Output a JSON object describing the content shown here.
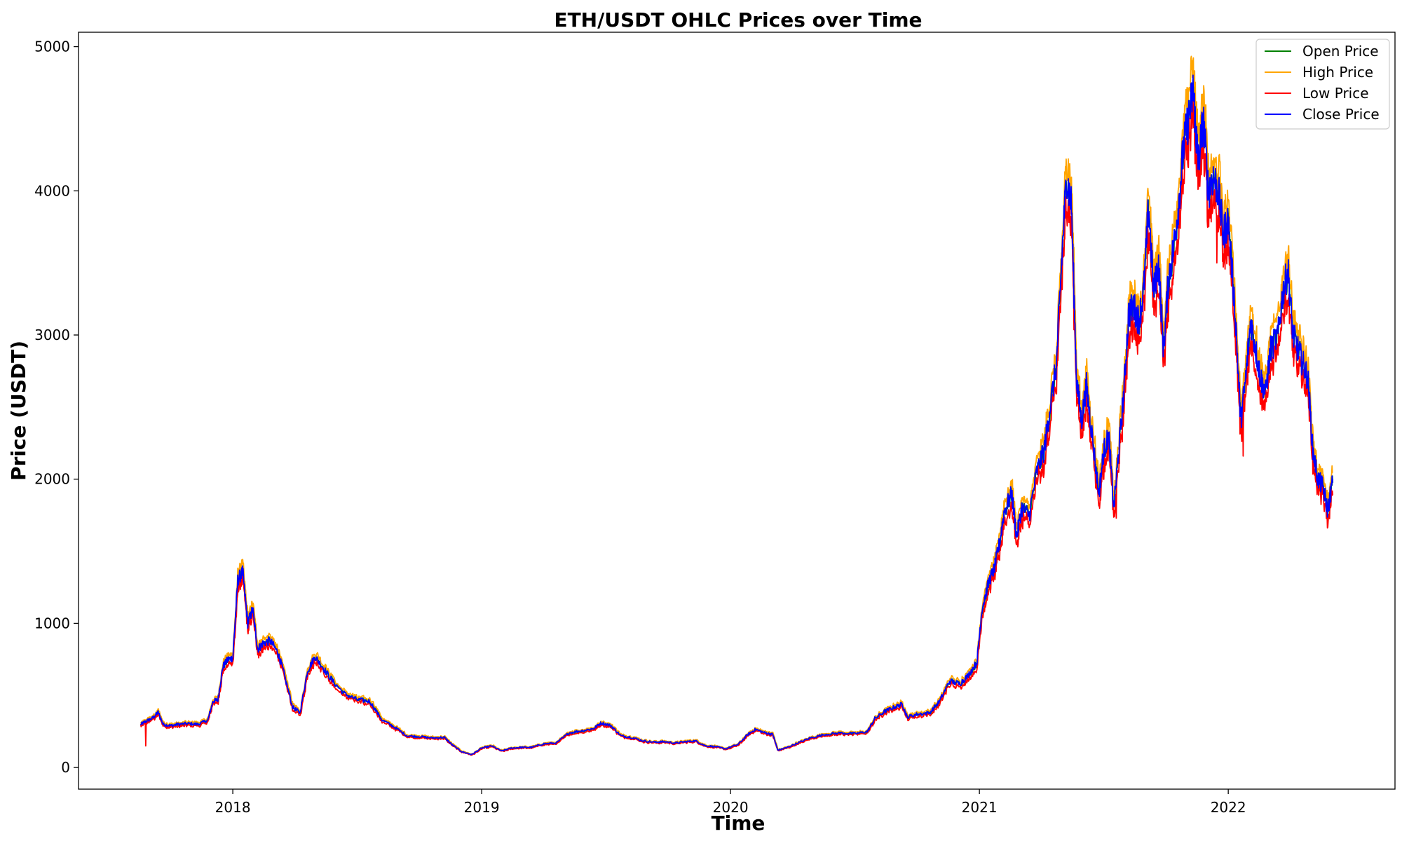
{
  "chart_data": {
    "type": "line",
    "title": "ETH/USDT OHLC Prices over Time",
    "xlabel": "Time",
    "ylabel": "Price (USDT)",
    "xlim": [
      2017.38,
      2022.67
    ],
    "ylim": [
      -150,
      5100
    ],
    "yticks": [
      0,
      1000,
      2000,
      3000,
      4000,
      5000
    ],
    "xticks": [
      2018,
      2019,
      2020,
      2021,
      2022
    ],
    "xtick_labels": [
      "2018",
      "2019",
      "2020",
      "2021",
      "2022"
    ],
    "grid": false,
    "legend_position": "top-right",
    "colors": {
      "open": "#008000",
      "high": "#ffa500",
      "low": "#ff0000",
      "close": "#0000ff"
    },
    "legend": [
      {
        "label": "Open Price",
        "color": "#008000"
      },
      {
        "label": "High Price",
        "color": "#ffa500"
      },
      {
        "label": "Low Price",
        "color": "#ff0000"
      },
      {
        "label": "Close Price",
        "color": "#0000ff"
      }
    ],
    "close_series": [
      [
        2017.63,
        300
      ],
      [
        2017.65,
        320
      ],
      [
        2017.68,
        345
      ],
      [
        2017.7,
        385
      ],
      [
        2017.72,
        300
      ],
      [
        2017.75,
        290
      ],
      [
        2017.78,
        300
      ],
      [
        2017.82,
        305
      ],
      [
        2017.86,
        300
      ],
      [
        2017.9,
        330
      ],
      [
        2017.92,
        460
      ],
      [
        2017.94,
        470
      ],
      [
        2017.96,
        700
      ],
      [
        2017.98,
        750
      ],
      [
        2018.0,
        760
      ],
      [
        2018.02,
        1300
      ],
      [
        2018.04,
        1360
      ],
      [
        2018.06,
        1000
      ],
      [
        2018.08,
        1100
      ],
      [
        2018.1,
        820
      ],
      [
        2018.12,
        860
      ],
      [
        2018.15,
        880
      ],
      [
        2018.18,
        800
      ],
      [
        2018.2,
        690
      ],
      [
        2018.24,
        420
      ],
      [
        2018.27,
        380
      ],
      [
        2018.3,
        670
      ],
      [
        2018.33,
        770
      ],
      [
        2018.36,
        700
      ],
      [
        2018.4,
        600
      ],
      [
        2018.45,
        510
      ],
      [
        2018.5,
        470
      ],
      [
        2018.55,
        460
      ],
      [
        2018.6,
        330
      ],
      [
        2018.65,
        280
      ],
      [
        2018.7,
        220
      ],
      [
        2018.75,
        215
      ],
      [
        2018.8,
        205
      ],
      [
        2018.85,
        210
      ],
      [
        2018.88,
        160
      ],
      [
        2018.92,
        110
      ],
      [
        2018.96,
        90
      ],
      [
        2019.0,
        135
      ],
      [
        2019.04,
        150
      ],
      [
        2019.08,
        115
      ],
      [
        2019.12,
        135
      ],
      [
        2019.16,
        140
      ],
      [
        2019.2,
        140
      ],
      [
        2019.25,
        165
      ],
      [
        2019.3,
        170
      ],
      [
        2019.35,
        240
      ],
      [
        2019.4,
        255
      ],
      [
        2019.45,
        270
      ],
      [
        2019.48,
        310
      ],
      [
        2019.52,
        290
      ],
      [
        2019.56,
        220
      ],
      [
        2019.6,
        210
      ],
      [
        2019.65,
        185
      ],
      [
        2019.7,
        175
      ],
      [
        2019.73,
        180
      ],
      [
        2019.78,
        170
      ],
      [
        2019.82,
        180
      ],
      [
        2019.86,
        185
      ],
      [
        2019.9,
        150
      ],
      [
        2019.94,
        145
      ],
      [
        2019.98,
        130
      ],
      [
        2020.03,
        160
      ],
      [
        2020.07,
        230
      ],
      [
        2020.1,
        265
      ],
      [
        2020.14,
        240
      ],
      [
        2020.17,
        230
      ],
      [
        2020.19,
        120
      ],
      [
        2020.22,
        135
      ],
      [
        2020.27,
        170
      ],
      [
        2020.32,
        205
      ],
      [
        2020.38,
        230
      ],
      [
        2020.44,
        240
      ],
      [
        2020.5,
        235
      ],
      [
        2020.55,
        250
      ],
      [
        2020.58,
        340
      ],
      [
        2020.62,
        390
      ],
      [
        2020.66,
        420
      ],
      [
        2020.69,
        440
      ],
      [
        2020.71,
        350
      ],
      [
        2020.75,
        370
      ],
      [
        2020.8,
        380
      ],
      [
        2020.84,
        460
      ],
      [
        2020.88,
        600
      ],
      [
        2020.92,
        580
      ],
      [
        2020.95,
        630
      ],
      [
        2020.99,
        730
      ],
      [
        2021.01,
        1100
      ],
      [
        2021.04,
        1300
      ],
      [
        2021.06,
        1380
      ],
      [
        2021.08,
        1550
      ],
      [
        2021.1,
        1780
      ],
      [
        2021.13,
        1900
      ],
      [
        2021.15,
        1600
      ],
      [
        2021.17,
        1800
      ],
      [
        2021.2,
        1750
      ],
      [
        2021.23,
        2050
      ],
      [
        2021.26,
        2200
      ],
      [
        2021.28,
        2450
      ],
      [
        2021.31,
        2800
      ],
      [
        2021.33,
        3500
      ],
      [
        2021.35,
        4100
      ],
      [
        2021.37,
        3900
      ],
      [
        2021.39,
        2700
      ],
      [
        2021.41,
        2400
      ],
      [
        2021.43,
        2650
      ],
      [
        2021.45,
        2350
      ],
      [
        2021.48,
        1900
      ],
      [
        2021.5,
        2200
      ],
      [
        2021.52,
        2300
      ],
      [
        2021.54,
        1800
      ],
      [
        2021.56,
        2200
      ],
      [
        2021.58,
        2600
      ],
      [
        2021.6,
        3150
      ],
      [
        2021.62,
        3200
      ],
      [
        2021.64,
        3100
      ],
      [
        2021.66,
        3300
      ],
      [
        2021.68,
        3900
      ],
      [
        2021.7,
        3300
      ],
      [
        2021.72,
        3500
      ],
      [
        2021.74,
        2900
      ],
      [
        2021.76,
        3400
      ],
      [
        2021.78,
        3600
      ],
      [
        2021.8,
        3900
      ],
      [
        2021.82,
        4300
      ],
      [
        2021.84,
        4500
      ],
      [
        2021.86,
        4700
      ],
      [
        2021.87,
        4400
      ],
      [
        2021.88,
        4200
      ],
      [
        2021.9,
        4500
      ],
      [
        2021.92,
        4000
      ],
      [
        2021.94,
        4100
      ],
      [
        2021.96,
        4000
      ],
      [
        2021.98,
        3700
      ],
      [
        2022.0,
        3800
      ],
      [
        2022.03,
        3100
      ],
      [
        2022.05,
        2400
      ],
      [
        2022.07,
        2700
      ],
      [
        2022.09,
        3100
      ],
      [
        2022.11,
        2900
      ],
      [
        2022.13,
        2700
      ],
      [
        2022.15,
        2600
      ],
      [
        2022.17,
        2900
      ],
      [
        2022.2,
        3000
      ],
      [
        2022.22,
        3300
      ],
      [
        2022.24,
        3450
      ],
      [
        2022.26,
        3000
      ],
      [
        2022.28,
        2900
      ],
      [
        2022.3,
        2800
      ],
      [
        2022.32,
        2700
      ],
      [
        2022.34,
        2200
      ],
      [
        2022.36,
        2000
      ],
      [
        2022.38,
        1950
      ],
      [
        2022.4,
        1780
      ],
      [
        2022.42,
        2000
      ]
    ]
  }
}
